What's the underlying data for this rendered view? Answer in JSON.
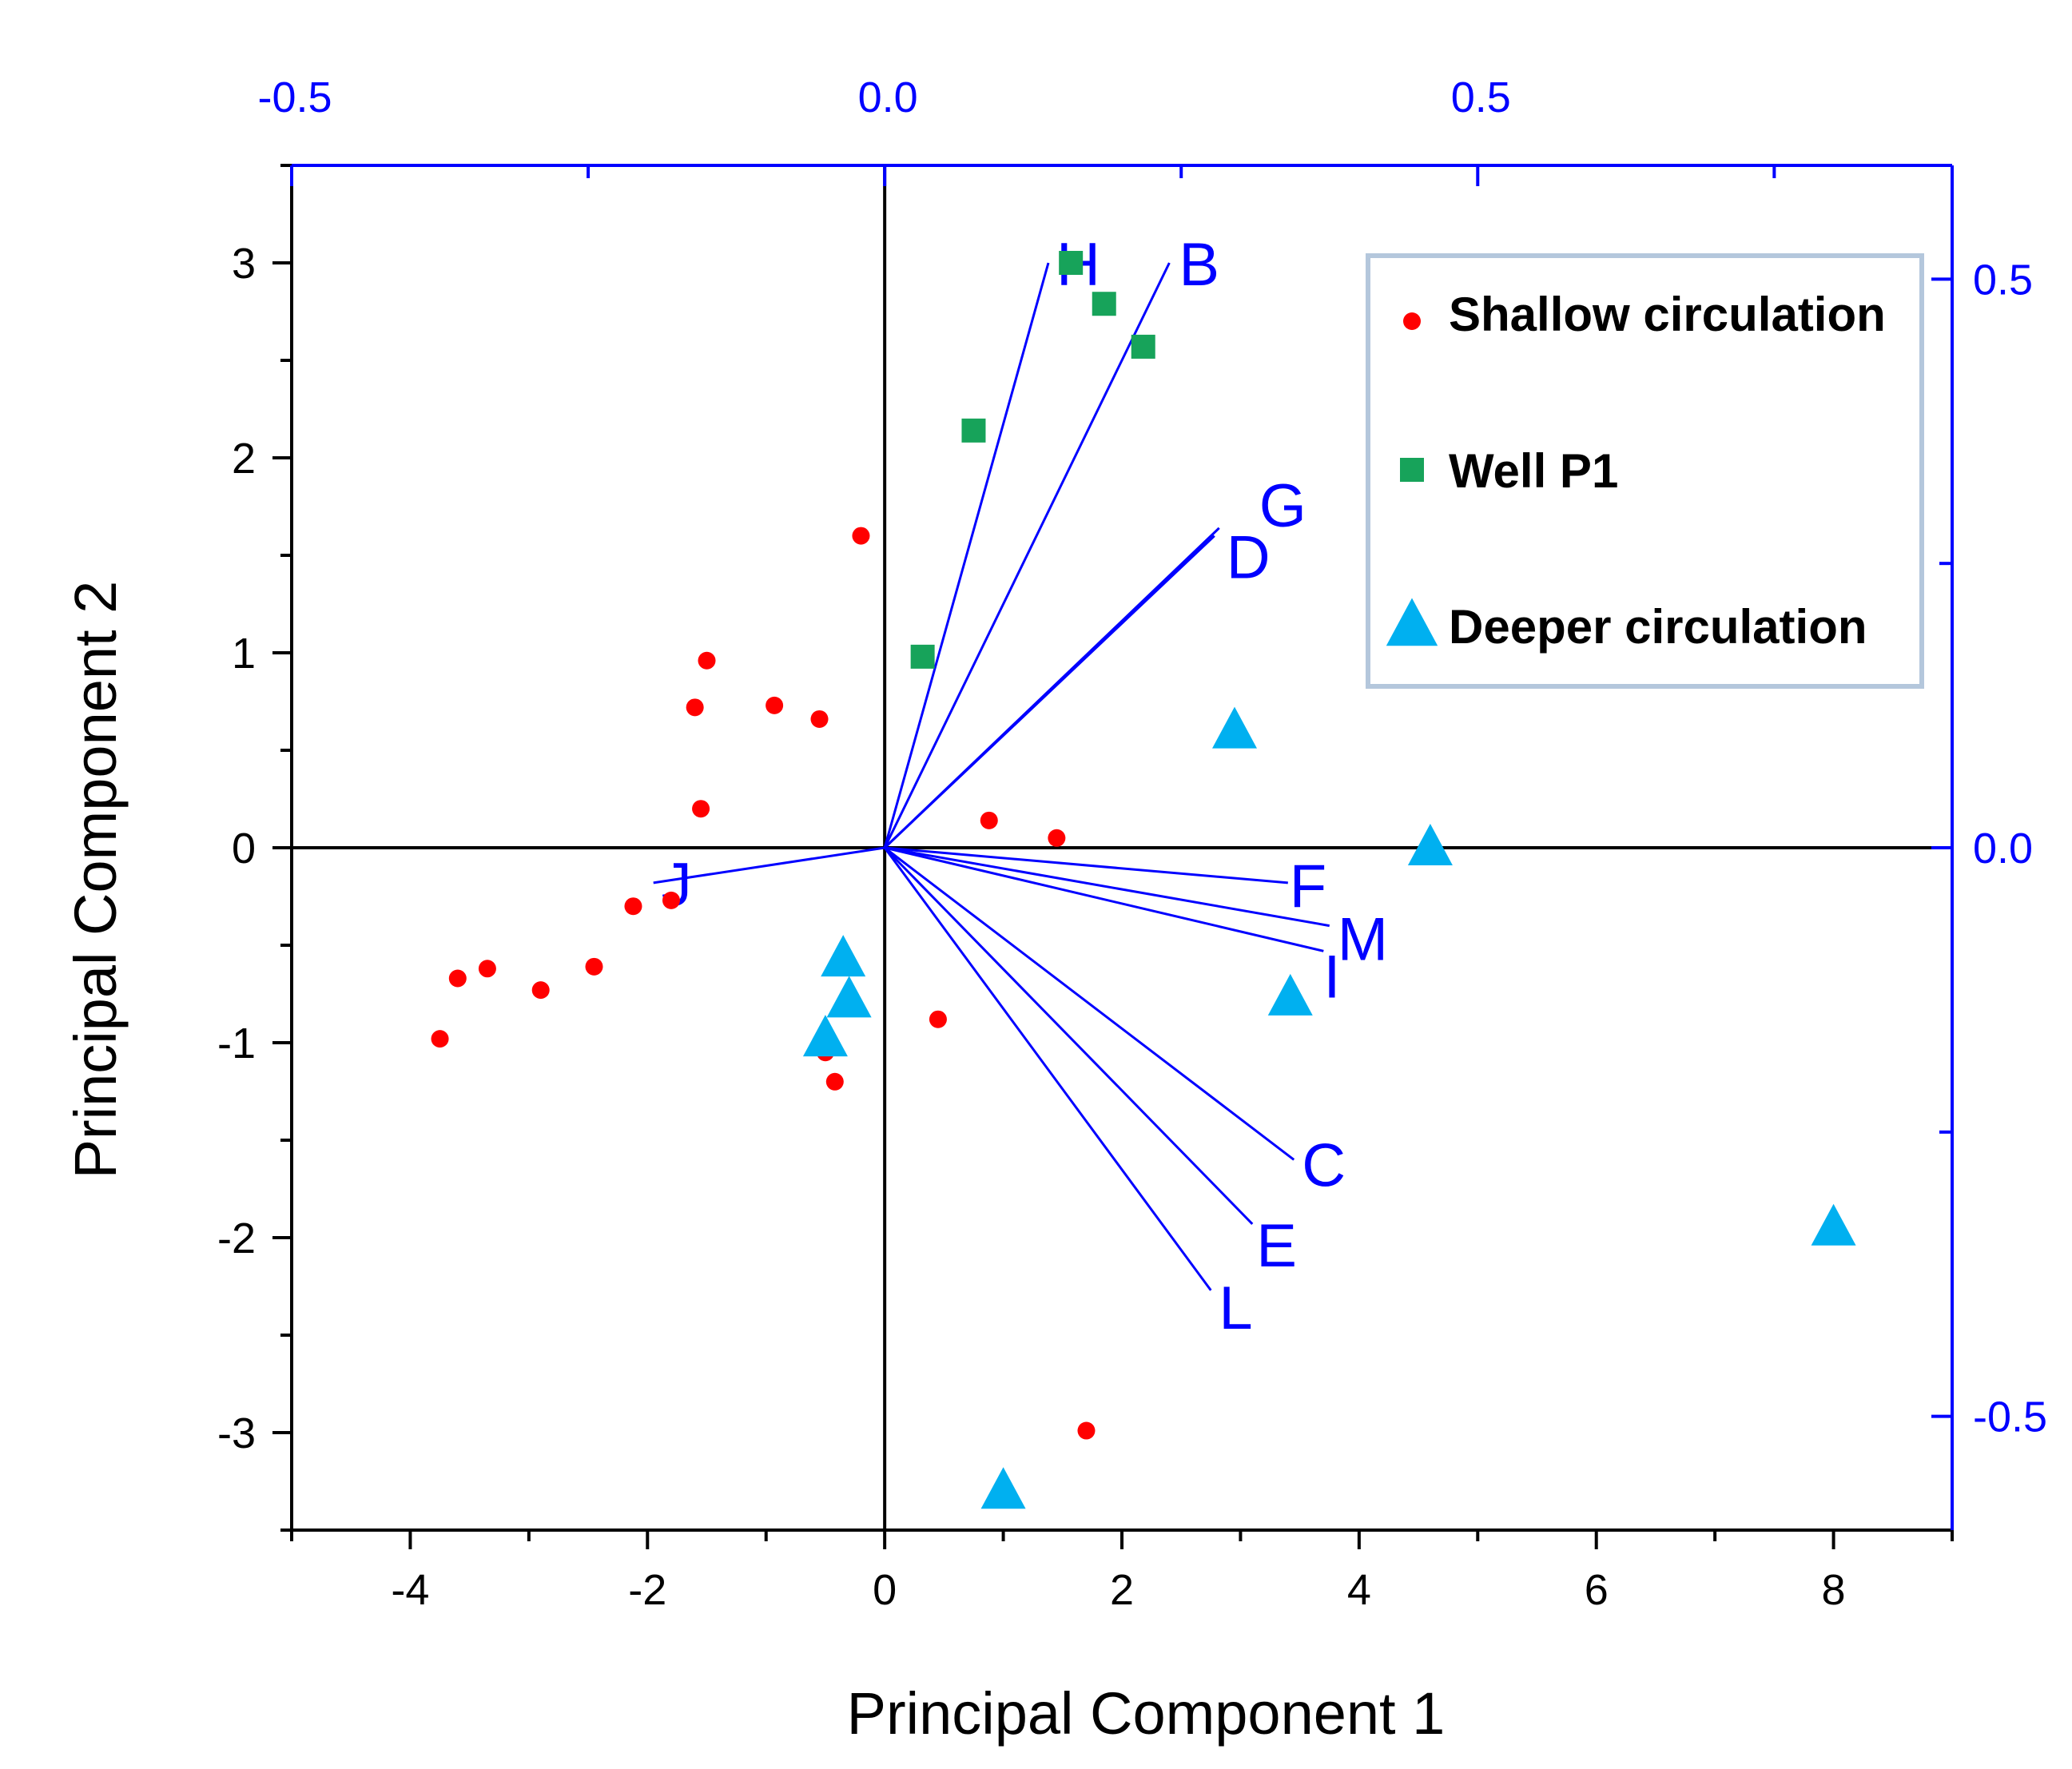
{
  "chart_data": {
    "type": "scatter",
    "subtype": "biplot",
    "xlabel": "Principal Component 1",
    "ylabel": "Principal Component 2",
    "xlim": [
      -5,
      9
    ],
    "ylim": [
      -3.5,
      3.5
    ],
    "x_ticks": [
      -4,
      -2,
      0,
      2,
      4,
      6,
      8
    ],
    "x_tick_labels": [
      "-4",
      "-2",
      "0",
      "2",
      "4",
      "6",
      "8"
    ],
    "y_ticks": [
      -3,
      -2,
      -1,
      0,
      1,
      2,
      3
    ],
    "y_tick_labels": [
      "-3",
      "-2",
      "-1",
      "0",
      "1",
      "2",
      "3"
    ],
    "top_axis": {
      "lim": [
        -0.5,
        0.9
      ],
      "ticks": [
        -0.5,
        0.0,
        0.5
      ],
      "tick_labels": [
        "-0.5",
        "0.0",
        "0.5"
      ]
    },
    "right_axis": {
      "lim": [
        -0.6,
        0.6
      ],
      "ticks": [
        0.5,
        0.0,
        -0.5
      ],
      "tick_labels": [
        "0.5",
        "0.0",
        "-0.5"
      ]
    },
    "colors": {
      "shallow": "#ff0000",
      "well": "#17a35a",
      "deeper": "#00b0f0",
      "loadings": "#0000ff",
      "axis": "#000000",
      "secondary_axis": "#0000ff",
      "legend_border": "#b4c7dc"
    },
    "series": [
      {
        "name": "Shallow circulation",
        "marker": "circle",
        "points": [
          [
            -3.75,
            -0.98
          ],
          [
            -3.6,
            -0.67
          ],
          [
            -3.35,
            -0.62
          ],
          [
            -2.9,
            -0.73
          ],
          [
            -2.45,
            -0.61
          ],
          [
            -2.12,
            -0.3
          ],
          [
            -1.8,
            -0.27
          ],
          [
            -1.6,
            0.72
          ],
          [
            -1.55,
            0.2
          ],
          [
            -1.5,
            0.96
          ],
          [
            -0.93,
            0.73
          ],
          [
            -0.55,
            0.66
          ],
          [
            -0.2,
            1.6
          ],
          [
            0.88,
            0.14
          ],
          [
            1.45,
            0.05
          ],
          [
            0.45,
            -0.88
          ],
          [
            -0.42,
            -1.2
          ],
          [
            -0.5,
            -1.05
          ],
          [
            1.7,
            -2.99
          ]
        ]
      },
      {
        "name": "Well P1",
        "marker": "square",
        "points": [
          [
            1.57,
            3.0
          ],
          [
            1.85,
            2.79
          ],
          [
            2.18,
            2.57
          ],
          [
            0.75,
            2.14
          ],
          [
            0.32,
            0.98
          ]
        ]
      },
      {
        "name": "Deeper circulation",
        "marker": "triangle",
        "points": [
          [
            2.95,
            0.6
          ],
          [
            4.6,
            0.0
          ],
          [
            3.42,
            -0.77
          ],
          [
            -0.35,
            -0.57
          ],
          [
            -0.3,
            -0.78
          ],
          [
            -0.5,
            -0.98
          ],
          [
            1.0,
            -3.3
          ],
          [
            8.0,
            -1.95
          ]
        ]
      }
    ],
    "loadings": [
      {
        "label": "H",
        "x": 1.38,
        "y": 3.0
      },
      {
        "label": "B",
        "x": 2.4,
        "y": 3.0
      },
      {
        "label": "G",
        "x": 2.82,
        "y": 1.64
      },
      {
        "label": "D",
        "x": 2.78,
        "y": 1.6
      },
      {
        "label": "J",
        "x": -1.95,
        "y": -0.18
      },
      {
        "label": "F",
        "x": 3.4,
        "y": -0.18
      },
      {
        "label": "M",
        "x": 3.75,
        "y": -0.4
      },
      {
        "label": "I",
        "x": 3.7,
        "y": -0.53
      },
      {
        "label": "C",
        "x": 3.45,
        "y": -1.6
      },
      {
        "label": "E",
        "x": 3.1,
        "y": -1.93
      },
      {
        "label": "L",
        "x": 2.75,
        "y": -2.27
      }
    ],
    "legend": {
      "position": "top-right",
      "entries": [
        "Shallow circulation",
        "Well P1",
        "Deeper circulation"
      ]
    }
  }
}
